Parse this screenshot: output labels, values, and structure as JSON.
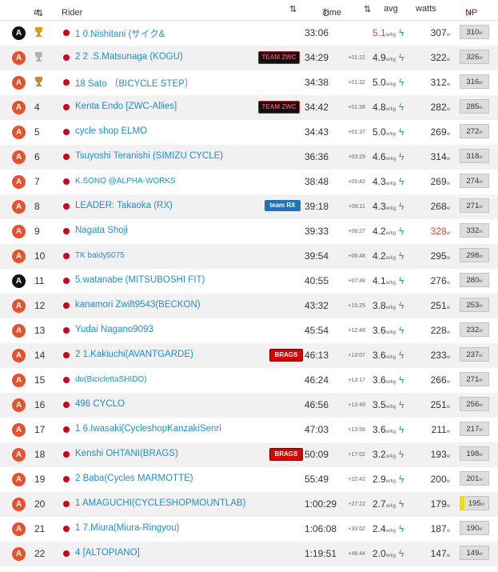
{
  "header": {
    "pos": "#",
    "rider": "Rider",
    "time": "Time",
    "avg": "avg",
    "watts": "watts",
    "np": "NP"
  },
  "colors": {
    "cat_a": "#e8512b",
    "cat_b": "#111111",
    "link": "#1a8fd8",
    "bolt": "#27a17b",
    "highlight": "#e34234"
  },
  "rows": [
    {
      "cat": "A",
      "catc": "B",
      "pos": "",
      "trophy": "gold",
      "name": "1 0.Nishitani (サイク&",
      "team": "",
      "time": "33:06",
      "gap": "",
      "wkg": "5.1",
      "wkgRed": true,
      "watts": "307",
      "wattsRed": false,
      "np": "310"
    },
    {
      "cat": "A",
      "catc": "A",
      "pos": "",
      "trophy": "silver",
      "name": "2 2 .S.Matsunaga (KOGU)",
      "team": "TEAM ZWC",
      "teamType": "zwc",
      "time": "34:29",
      "gap": "+01:22",
      "wkg": "4.9",
      "wkgRed": false,
      "watts": "322",
      "wattsRed": false,
      "np": "326"
    },
    {
      "cat": "A",
      "catc": "A",
      "pos": "",
      "trophy": "bronze",
      "name": "18 Sato （BICYCLE STEP）",
      "team": "",
      "time": "34:38",
      "gap": "+01:32",
      "wkg": "5.0",
      "wkgRed": false,
      "watts": "312",
      "wattsRed": false,
      "np": "316"
    },
    {
      "cat": "A",
      "catc": "A",
      "pos": "4",
      "trophy": "",
      "name": "Kenta Endo [ZWC-Allies]",
      "team": "TEAM ZWC",
      "teamType": "zwc",
      "time": "34:42",
      "gap": "+01:36",
      "wkg": "4.8",
      "wkgRed": false,
      "watts": "282",
      "wattsRed": false,
      "np": "285"
    },
    {
      "cat": "A",
      "catc": "A",
      "pos": "5",
      "trophy": "",
      "name": "cycle shop ELMO",
      "team": "",
      "time": "34:43",
      "gap": "+01:37",
      "wkg": "5.0",
      "wkgRed": false,
      "watts": "269",
      "wattsRed": false,
      "np": "272"
    },
    {
      "cat": "A",
      "catc": "A",
      "pos": "6",
      "trophy": "",
      "name": "Tsuyoshi Teranishi (SIMIZU CYCLE)",
      "team": "",
      "time": "36:36",
      "gap": "+03:29",
      "wkg": "4.6",
      "wkgRed": false,
      "watts": "314",
      "wattsRed": false,
      "np": "318"
    },
    {
      "cat": "A",
      "catc": "A",
      "pos": "7",
      "trophy": "",
      "name": "K.SONO @ALPHA-WORKS",
      "small": true,
      "team": "",
      "time": "38:48",
      "gap": "+05:42",
      "wkg": "4.3",
      "wkgRed": false,
      "watts": "269",
      "wattsRed": false,
      "np": "274"
    },
    {
      "cat": "A",
      "catc": "A",
      "pos": "8",
      "trophy": "",
      "name": "LEADER: Takaoka (RX)",
      "team": "team RX",
      "teamType": "rx",
      "time": "39:18",
      "gap": "+06:11",
      "wkg": "4.3",
      "wkgRed": false,
      "watts": "268",
      "wattsRed": false,
      "np": "271"
    },
    {
      "cat": "A",
      "catc": "A",
      "pos": "9",
      "trophy": "",
      "name": "Nagata Shoji",
      "team": "",
      "time": "39:33",
      "gap": "+06:27",
      "wkg": "4.2",
      "wkgRed": false,
      "watts": "328",
      "wattsRed": true,
      "np": "332"
    },
    {
      "cat": "A",
      "catc": "A",
      "pos": "10",
      "trophy": "",
      "name": "TK baldy5075",
      "small": true,
      "team": "",
      "time": "39:54",
      "gap": "+06:48",
      "wkg": "4.2",
      "wkgRed": false,
      "watts": "295",
      "wattsRed": false,
      "np": "298"
    },
    {
      "cat": "A",
      "catc": "B",
      "pos": "11",
      "trophy": "",
      "name": "5.watanabe (MITSUBOSHI FIT)",
      "team": "",
      "time": "40:55",
      "gap": "+07:48",
      "wkg": "4.1",
      "wkgRed": false,
      "watts": "276",
      "wattsRed": false,
      "np": "280"
    },
    {
      "cat": "A",
      "catc": "A",
      "pos": "12",
      "trophy": "",
      "name": "kanamori Zwift9543(BECKON)",
      "team": "",
      "time": "43:32",
      "gap": "+10:25",
      "wkg": "3.8",
      "wkgRed": false,
      "watts": "251",
      "wattsRed": false,
      "np": "253"
    },
    {
      "cat": "A",
      "catc": "A",
      "pos": "13",
      "trophy": "",
      "name": "Yudai Nagano9093",
      "team": "",
      "time": "45:54",
      "gap": "+12:48",
      "wkg": "3.6",
      "wkgRed": false,
      "watts": "228",
      "wattsRed": false,
      "np": "232"
    },
    {
      "cat": "A",
      "catc": "A",
      "pos": "14",
      "trophy": "",
      "name": "2 1.Kakiuchi(AVANTGARDE)",
      "team": "BRAGS",
      "teamType": "brags",
      "time": "46:13",
      "gap": "+13:07",
      "wkg": "3.6",
      "wkgRed": false,
      "watts": "233",
      "wattsRed": false,
      "np": "237"
    },
    {
      "cat": "A",
      "catc": "A",
      "pos": "15",
      "trophy": "",
      "name": "do(BiciclettaSHIDO)",
      "small": true,
      "team": "",
      "time": "46:24",
      "gap": "+13:17",
      "wkg": "3.6",
      "wkgRed": false,
      "watts": "266",
      "wattsRed": false,
      "np": "271"
    },
    {
      "cat": "A",
      "catc": "A",
      "pos": "16",
      "trophy": "",
      "name": "496 CYCLO",
      "team": "",
      "time": "46:56",
      "gap": "+13:49",
      "wkg": "3.5",
      "wkgRed": false,
      "watts": "251",
      "wattsRed": false,
      "np": "256"
    },
    {
      "cat": "A",
      "catc": "A",
      "pos": "17",
      "trophy": "",
      "name": "1 6.Iwasaki(CycleshopKanzakiSenri",
      "team": "",
      "time": "47:03",
      "gap": "+13:56",
      "wkg": "3.6",
      "wkgRed": false,
      "watts": "211",
      "wattsRed": false,
      "np": "217"
    },
    {
      "cat": "A",
      "catc": "A",
      "pos": "18",
      "trophy": "",
      "name": "Kenshi OHTANI(BRAGS)",
      "team": "BRAGS",
      "teamType": "brags",
      "time": "50:09",
      "gap": "+17:02",
      "wkg": "3.2",
      "wkgRed": false,
      "watts": "193",
      "wattsRed": false,
      "np": "198"
    },
    {
      "cat": "A",
      "catc": "A",
      "pos": "19",
      "trophy": "",
      "name": "2 Baba(Cycles MARMOTTE)",
      "team": "",
      "time": "55:49",
      "gap": "+22:42",
      "wkg": "2.9",
      "wkgRed": false,
      "watts": "200",
      "wattsRed": false,
      "np": "201"
    },
    {
      "cat": "A",
      "catc": "A",
      "pos": "20",
      "trophy": "",
      "name": "1 AMAGUCHI(CYCLESHOPMOUNTLAB)",
      "team": "",
      "time": "1:00:29",
      "gap": "+27:22",
      "wkg": "2.7",
      "wkgRed": false,
      "watts": "179",
      "wattsRed": false,
      "np": "195",
      "npYellow": true
    },
    {
      "cat": "A",
      "catc": "A",
      "pos": "21",
      "trophy": "",
      "name": "1 7.Miura(Miura-Ringyou)",
      "team": "",
      "time": "1:06:08",
      "gap": "+33:02",
      "wkg": "2.4",
      "wkgRed": false,
      "watts": "187",
      "wattsRed": false,
      "np": "190"
    },
    {
      "cat": "A",
      "catc": "A",
      "pos": "22",
      "trophy": "",
      "name": "4 [ALTOPIANO]",
      "team": "",
      "time": "1:19:51",
      "gap": "+46:44",
      "wkg": "2.0",
      "wkgRed": false,
      "watts": "147",
      "wattsRed": false,
      "np": "149"
    }
  ]
}
